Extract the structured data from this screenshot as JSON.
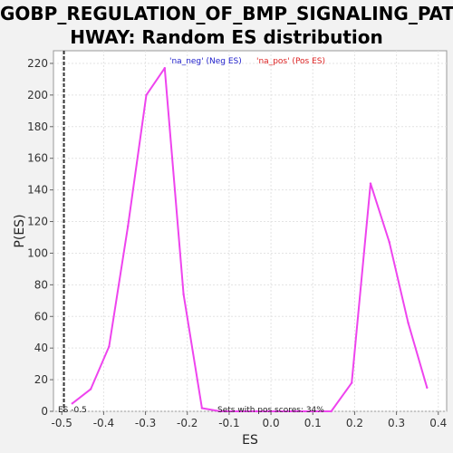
{
  "title_line1": "GOBP_REGULATION_OF_BMP_SIGNALING_PAT",
  "title_line2": "HWAY: Random ES distribution",
  "chart_data": {
    "type": "line",
    "xlabel": "ES",
    "ylabel": "P(ES)",
    "xlim": [
      -0.52,
      0.42
    ],
    "ylim": [
      0,
      228
    ],
    "x_ticks": [
      -0.5,
      -0.4,
      -0.3,
      -0.2,
      -0.1,
      0.0,
      0.1,
      0.2,
      0.3,
      0.4
    ],
    "x_tick_labels": [
      "-0.5",
      "-0.4",
      "-0.3",
      "-0.2",
      "-0.1",
      "0.0",
      "0.1",
      "0.2",
      "0.3",
      "0.4"
    ],
    "y_ticks": [
      0,
      20,
      40,
      60,
      80,
      100,
      120,
      140,
      160,
      180,
      200,
      220
    ],
    "y_tick_labels": [
      "0",
      "20",
      "40",
      "60",
      "80",
      "100",
      "120",
      "140",
      "160",
      "180",
      "200",
      "220"
    ],
    "grid": true,
    "legend": [
      {
        "label": "'na_neg' (Neg ES)",
        "color": "#2222cc"
      },
      {
        "label": "'na_pos' (Pos ES)",
        "color": "#dd2222"
      }
    ],
    "series_color": "#ee44ee",
    "series": [
      {
        "values_x": [
          -0.475,
          -0.431,
          -0.387,
          -0.342,
          -0.298,
          -0.254,
          -0.209,
          -0.165,
          -0.121,
          -0.077,
          -0.033,
          0.012,
          0.056,
          0.1,
          0.144,
          0.193,
          0.238,
          0.283,
          0.328,
          0.373
        ],
        "values_y": [
          5,
          14,
          41,
          117,
          200,
          217,
          74,
          2,
          0,
          0,
          0,
          0,
          0,
          0,
          0,
          18,
          144,
          107,
          56,
          15
        ]
      }
    ],
    "es_marker_x": -0.495,
    "annotations": {
      "es_label": "ES -0.5",
      "pos_scores": "Sets with pos scores: 34%"
    }
  }
}
